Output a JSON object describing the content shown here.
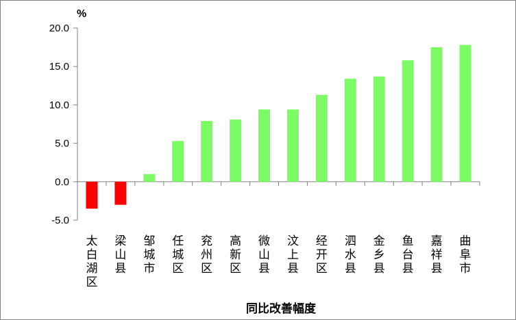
{
  "chart_data": {
    "type": "bar",
    "title": "",
    "xlabel": "同比改善幅度",
    "ylabel": "%",
    "ylim": [
      -5.0,
      20.0
    ],
    "yticks": [
      "20.0",
      "15.0",
      "10.0",
      "5.0",
      "0.0",
      "-5.0"
    ],
    "grid": false,
    "legend": "none",
    "categories": [
      "太白湖区",
      "梁山县",
      "邹城市",
      "任城区",
      "兖州区",
      "高新区",
      "微山县",
      "汶上县",
      "经开区",
      "泗水县",
      "金乡县",
      "鱼台县",
      "嘉祥县",
      "曲阜市"
    ],
    "values": [
      -3.5,
      -3.0,
      1.0,
      5.3,
      7.9,
      8.1,
      9.4,
      9.4,
      11.3,
      13.4,
      13.7,
      15.8,
      17.5,
      17.8
    ],
    "colors": {
      "positive": "#7CFC64",
      "negative": "#FF0000",
      "axis": "#808080"
    }
  }
}
